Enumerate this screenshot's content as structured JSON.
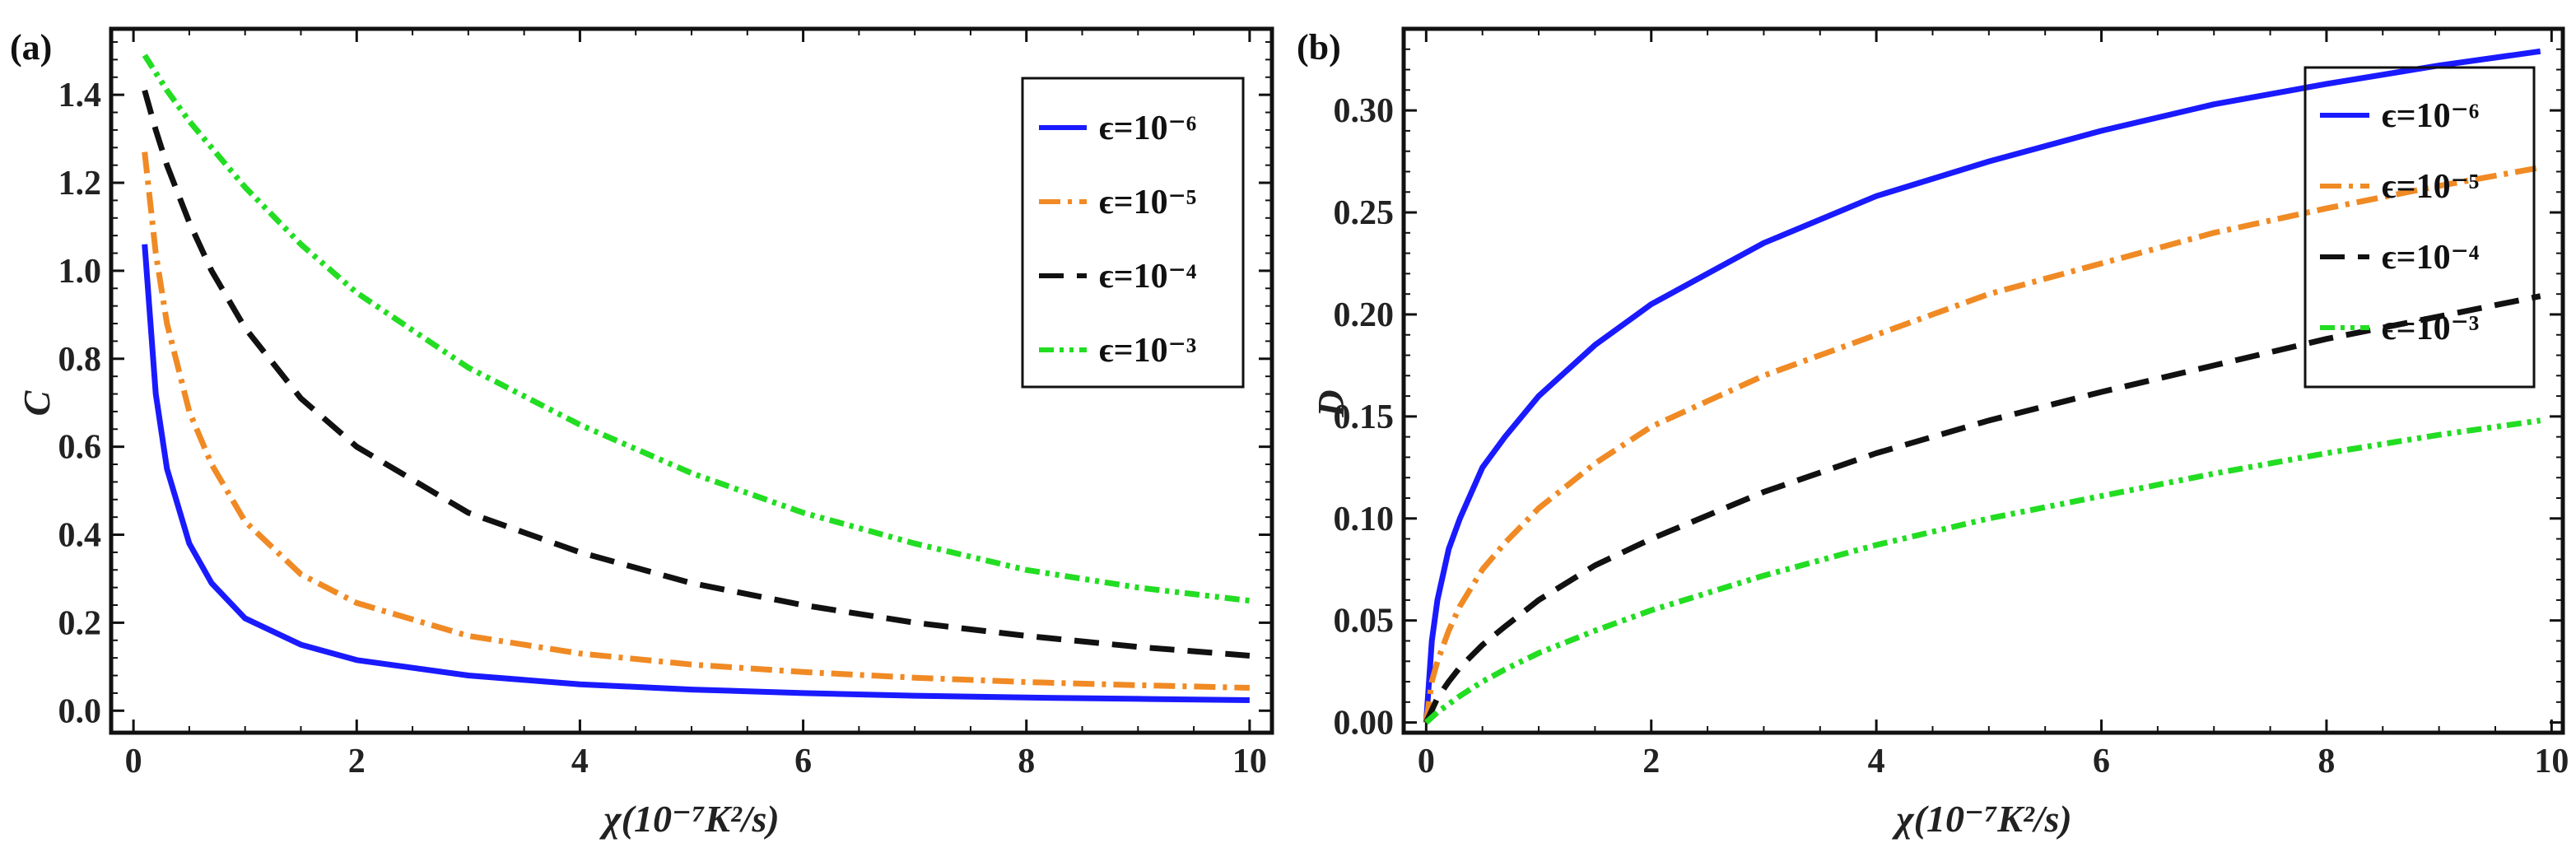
{
  "chart_data": [
    {
      "panel": "(a)",
      "type": "line",
      "xlabel": "χ(10⁻⁷K²/s)",
      "ylabel": "C",
      "xlim": [
        -0.2,
        10.2
      ],
      "ylim": [
        -0.05,
        1.55
      ],
      "xticks": [
        0,
        2,
        4,
        6,
        8,
        10
      ],
      "yticks": [
        0.0,
        0.2,
        0.4,
        0.6,
        0.8,
        1.0,
        1.2,
        1.4
      ],
      "ytick_labels": [
        "0.0",
        "0.2",
        "0.4",
        "0.6",
        "0.8",
        "1.0",
        "1.2",
        "1.4"
      ],
      "legend_position": "top-right",
      "series": [
        {
          "name": "ϵ=10⁻⁶",
          "color": "#1a1aff",
          "dash": "solid",
          "x": [
            0.1,
            0.2,
            0.3,
            0.5,
            0.7,
            1.0,
            1.5,
            2.0,
            3.0,
            4.0,
            5.0,
            6.0,
            7.0,
            8.0,
            9.0,
            10.0
          ],
          "values": [
            1.06,
            0.72,
            0.55,
            0.38,
            0.29,
            0.21,
            0.15,
            0.115,
            0.08,
            0.06,
            0.048,
            0.04,
            0.034,
            0.03,
            0.027,
            0.024
          ]
        },
        {
          "name": "ϵ=10⁻⁵",
          "color": "#f08a24",
          "dash": "dashdot",
          "x": [
            0.1,
            0.2,
            0.3,
            0.5,
            0.7,
            1.0,
            1.5,
            2.0,
            3.0,
            4.0,
            5.0,
            6.0,
            7.0,
            8.0,
            9.0,
            10.0
          ],
          "values": [
            1.27,
            1.04,
            0.88,
            0.68,
            0.56,
            0.43,
            0.31,
            0.245,
            0.17,
            0.13,
            0.105,
            0.088,
            0.075,
            0.065,
            0.058,
            0.052
          ]
        },
        {
          "name": "ϵ=10⁻⁴",
          "color": "#111111",
          "dash": "dashed",
          "x": [
            0.1,
            0.2,
            0.3,
            0.5,
            0.7,
            1.0,
            1.5,
            2.0,
            3.0,
            4.0,
            5.0,
            6.0,
            7.0,
            8.0,
            9.0,
            10.0
          ],
          "values": [
            1.41,
            1.32,
            1.24,
            1.11,
            1.0,
            0.87,
            0.71,
            0.6,
            0.45,
            0.36,
            0.29,
            0.24,
            0.2,
            0.17,
            0.145,
            0.125
          ]
        },
        {
          "name": "ϵ=10⁻³",
          "color": "#22dd22",
          "dash": "dashdotdot",
          "x": [
            0.1,
            0.2,
            0.3,
            0.5,
            0.7,
            1.0,
            1.5,
            2.0,
            3.0,
            4.0,
            5.0,
            6.0,
            7.0,
            8.0,
            9.0,
            10.0
          ],
          "values": [
            1.49,
            1.45,
            1.41,
            1.34,
            1.28,
            1.19,
            1.06,
            0.95,
            0.78,
            0.65,
            0.54,
            0.45,
            0.38,
            0.32,
            0.28,
            0.25
          ]
        }
      ]
    },
    {
      "panel": "(b)",
      "type": "line",
      "xlabel": "χ(10⁻⁷K²/s)",
      "ylabel": "D",
      "xlim": [
        -0.2,
        10.1
      ],
      "ylim": [
        -0.005,
        0.34
      ],
      "xticks": [
        0,
        2,
        4,
        6,
        8,
        10
      ],
      "yticks": [
        0.0,
        0.05,
        0.1,
        0.15,
        0.2,
        0.25,
        0.3
      ],
      "ytick_labels": [
        "0.00",
        "0.05",
        "0.10",
        "0.15",
        "0.20",
        "0.25",
        "0.30"
      ],
      "legend_position": "top-right",
      "series": [
        {
          "name": "ϵ=10⁻⁶",
          "color": "#1a1aff",
          "dash": "solid",
          "x": [
            0.0,
            0.05,
            0.1,
            0.2,
            0.3,
            0.5,
            0.7,
            1.0,
            1.5,
            2.0,
            3.0,
            4.0,
            5.0,
            6.0,
            7.0,
            8.0,
            9.0,
            9.9
          ],
          "values": [
            0.0,
            0.04,
            0.06,
            0.085,
            0.1,
            0.125,
            0.14,
            0.16,
            0.185,
            0.205,
            0.235,
            0.258,
            0.275,
            0.29,
            0.303,
            0.313,
            0.322,
            0.329
          ]
        },
        {
          "name": "ϵ=10⁻⁵",
          "color": "#f08a24",
          "dash": "dashdot",
          "x": [
            0.0,
            0.05,
            0.1,
            0.2,
            0.3,
            0.5,
            0.7,
            1.0,
            1.5,
            2.0,
            3.0,
            4.0,
            5.0,
            6.0,
            7.0,
            8.0,
            9.0,
            9.9
          ],
          "values": [
            0.0,
            0.02,
            0.03,
            0.045,
            0.057,
            0.075,
            0.088,
            0.105,
            0.127,
            0.145,
            0.17,
            0.19,
            0.21,
            0.225,
            0.24,
            0.252,
            0.263,
            0.272
          ]
        },
        {
          "name": "ϵ=10⁻⁴",
          "color": "#111111",
          "dash": "dashed",
          "x": [
            0.0,
            0.1,
            0.2,
            0.3,
            0.5,
            0.7,
            1.0,
            1.5,
            2.0,
            3.0,
            4.0,
            5.0,
            6.0,
            7.0,
            8.0,
            9.0,
            9.9
          ],
          "values": [
            0.0,
            0.012,
            0.02,
            0.027,
            0.038,
            0.047,
            0.06,
            0.077,
            0.09,
            0.113,
            0.132,
            0.148,
            0.162,
            0.175,
            0.188,
            0.199,
            0.209
          ]
        },
        {
          "name": "ϵ=10⁻³",
          "color": "#22dd22",
          "dash": "dashdotdot",
          "x": [
            0.0,
            0.1,
            0.2,
            0.3,
            0.5,
            0.7,
            1.0,
            1.5,
            2.0,
            3.0,
            4.0,
            5.0,
            6.0,
            7.0,
            8.0,
            9.0,
            9.9
          ],
          "values": [
            0.0,
            0.005,
            0.009,
            0.013,
            0.02,
            0.026,
            0.034,
            0.045,
            0.055,
            0.072,
            0.087,
            0.1,
            0.111,
            0.122,
            0.132,
            0.141,
            0.148
          ]
        }
      ]
    }
  ]
}
